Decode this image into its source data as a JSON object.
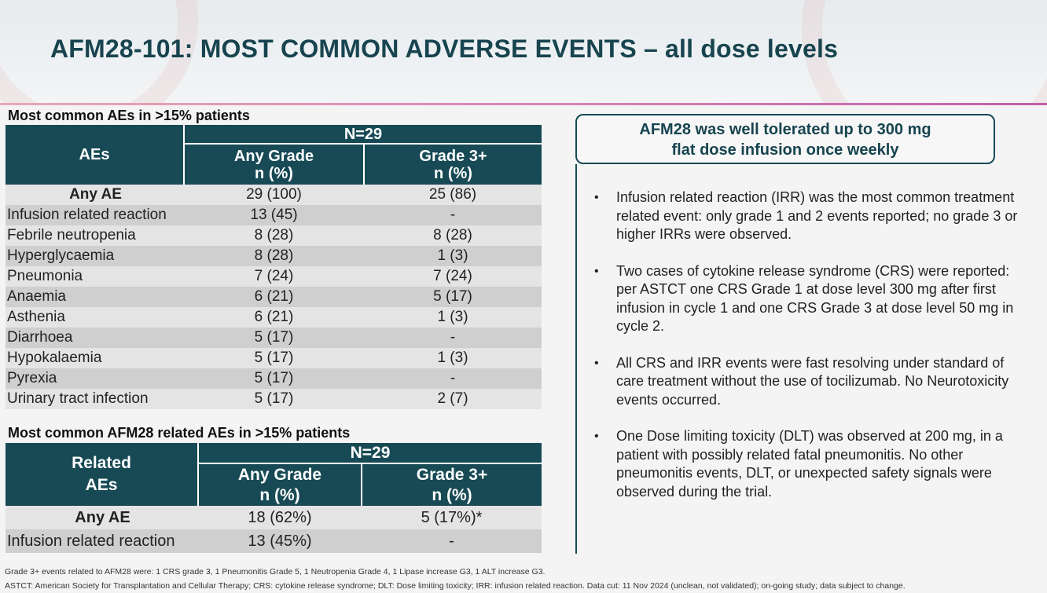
{
  "title": "AFM28-101: MOST COMMON ADVERSE EVENTS – all dose levels",
  "table1": {
    "caption": "Most common AEs in >15% patients",
    "header_row": "AEs",
    "n_label": "N=29",
    "col_any_line1": "Any Grade",
    "col_any_line2": "n (%)",
    "col_g3_line1": "Grade 3+",
    "col_g3_line2": "n (%)",
    "rows": [
      {
        "name": "Any AE",
        "any": "29 (100)",
        "g3": "25 (86)"
      },
      {
        "name": "Infusion related reaction",
        "any": "13 (45)",
        "g3": "-"
      },
      {
        "name": "Febrile neutropenia",
        "any": "8 (28)",
        "g3": "8 (28)"
      },
      {
        "name": "Hyperglycaemia",
        "any": "8 (28)",
        "g3": "1 (3)"
      },
      {
        "name": "Pneumonia",
        "any": "7 (24)",
        "g3": "7 (24)"
      },
      {
        "name": "Anaemia",
        "any": "6 (21)",
        "g3": "5 (17)"
      },
      {
        "name": "Asthenia",
        "any": "6 (21)",
        "g3": "1 (3)"
      },
      {
        "name": "Diarrhoea",
        "any": "5 (17)",
        "g3": "-"
      },
      {
        "name": "Hypokalaemia",
        "any": "5 (17)",
        "g3": "1 (3)"
      },
      {
        "name": "Pyrexia",
        "any": "5 (17)",
        "g3": "-"
      },
      {
        "name": "Urinary tract infection",
        "any": "5 (17)",
        "g3": "2 (7)"
      }
    ]
  },
  "table2": {
    "caption": "Most common AFM28 related AEs in >15% patients",
    "header_line1": "Related",
    "header_line2": "AEs",
    "n_label": "N=29",
    "col_any_line1": "Any Grade",
    "col_any_line2": "n (%)",
    "col_g3_line1": "Grade 3+",
    "col_g3_line2": "n (%)",
    "rows": [
      {
        "name": "Any AE",
        "any": "18 (62%)",
        "g3": "5 (17%)*"
      },
      {
        "name": "Infusion related reaction",
        "any": "13 (45%)",
        "g3": "-"
      }
    ]
  },
  "callout": {
    "line1": "AFM28 was well tolerated up to 300 mg",
    "line2": "flat dose infusion once weekly"
  },
  "bullets": [
    "Infusion related reaction (IRR) was the most common treatment related event: only grade 1 and 2 events reported;  no grade 3 or higher IRRs were observed.",
    "Two cases of cytokine release syndrome (CRS) were reported: per ASTCT one CRS Grade 1 at dose level 300 mg after first infusion in cycle 1 and one CRS Grade 3 at dose level 50 mg in cycle 2.",
    "All CRS and IRR events were fast resolving under standard of care treatment without the use of tocilizumab. No Neurotoxicity events occurred.",
    "One Dose limiting toxicity (DLT) was observed at 200 mg, in a patient with possibly related fatal pneumonitis. No other pneumonitis events, DLT,  or unexpected safety signals were observed during the trial."
  ],
  "bullet_glyph": "•",
  "footnotes": {
    "line1": "Grade 3+ events related to AFM28 were: 1 CRS grade 3, 1 Pneumonitis Grade 5, 1 Neutropenia Grade 4, 1 Lipase increase G3, 1  ALT increase G3.",
    "line2": "ASTCT: American Society for Transplantation and Cellular Therapy; CRS: cytokine release syndrome; DLT: Dose limiting toxicity; IRR: infusion related reaction. Data cut: 11 Nov 2024 (unclean, not validated); on-going study; data subject to change."
  },
  "colors": {
    "header_fill": "#174a55",
    "title_text": "#17444f",
    "row_light": "#e4e4e4",
    "row_dark": "#cfcfcf",
    "accent_rule": "#d987b8"
  }
}
